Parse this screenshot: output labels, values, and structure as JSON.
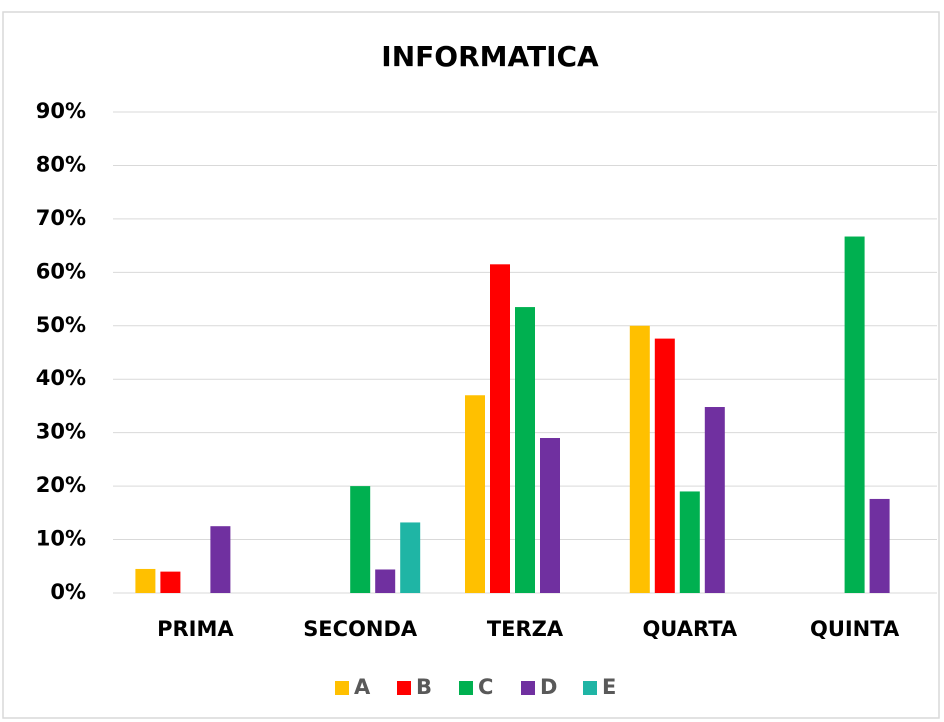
{
  "chart_data": {
    "type": "bar",
    "title": "INFORMATICA",
    "categories": [
      "PRIMA",
      "SECONDA",
      "TERZA",
      "QUARTA",
      "QUINTA"
    ],
    "series": [
      {
        "name": "A",
        "color": "#ffc000",
        "values": [
          4.5,
          null,
          37,
          50,
          null
        ]
      },
      {
        "name": "B",
        "color": "#ff0000",
        "values": [
          4,
          null,
          61.5,
          47.6,
          null
        ]
      },
      {
        "name": "C",
        "color": "#00b050",
        "values": [
          null,
          20,
          53.5,
          19,
          66.7
        ]
      },
      {
        "name": "D",
        "color": "#7030a0",
        "values": [
          12.5,
          4.4,
          29,
          34.8,
          17.6
        ]
      },
      {
        "name": "E",
        "color": "#1fb5a5",
        "values": [
          null,
          13.2,
          null,
          null,
          null
        ]
      }
    ],
    "ylim": [
      0,
      90
    ],
    "yticks": [
      {
        "value": 0,
        "label": "0%"
      },
      {
        "value": 10,
        "label": "10%"
      },
      {
        "value": 20,
        "label": "20%"
      },
      {
        "value": 30,
        "label": "30%"
      },
      {
        "value": 40,
        "label": "40%"
      },
      {
        "value": 50,
        "label": "50%"
      },
      {
        "value": 60,
        "label": "60%"
      },
      {
        "value": 70,
        "label": "70%"
      },
      {
        "value": 80,
        "label": "80%"
      },
      {
        "value": 90,
        "label": "90%"
      }
    ],
    "grid": true,
    "legend": "bottom"
  }
}
